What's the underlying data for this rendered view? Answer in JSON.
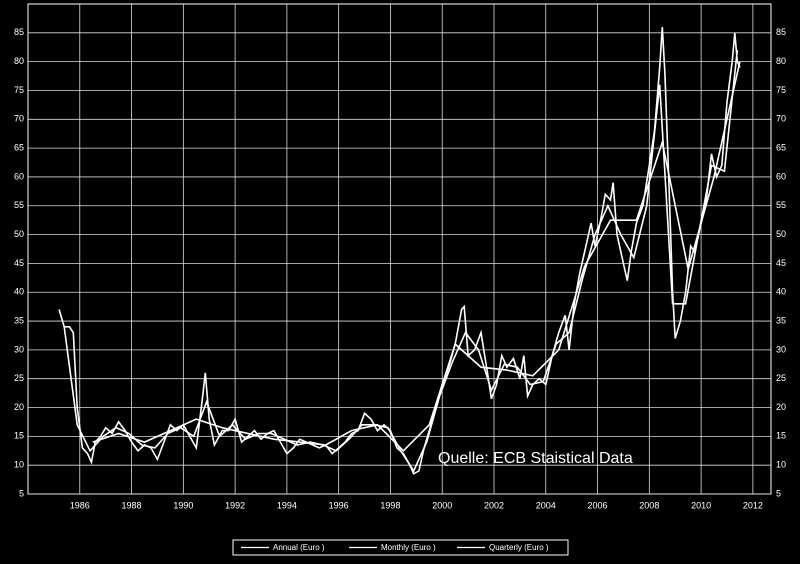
{
  "chart_data": {
    "type": "line",
    "annotation": "Quelle:  ECB Staistical Data",
    "xlim": [
      1984,
      2012.7
    ],
    "ylim": [
      5,
      90
    ],
    "xticks": [
      1986,
      1988,
      1990,
      1992,
      1994,
      1996,
      1998,
      2000,
      2002,
      2004,
      2006,
      2008,
      2010,
      2012
    ],
    "yticks": [
      5,
      10,
      15,
      20,
      25,
      30,
      35,
      40,
      45,
      50,
      55,
      60,
      65,
      70,
      75,
      80,
      85
    ],
    "grid": true,
    "legend": "bottom",
    "background": "#000000",
    "series": [
      {
        "name": "Annual (Euro )",
        "color": "#ffffff",
        "x": [
          1986.5,
          1987.5,
          1988.5,
          1989.5,
          1990.5,
          1991.5,
          1992.5,
          1993.5,
          1994.5,
          1995.5,
          1996.5,
          1997.5,
          1998.5,
          1999.5,
          2000.5,
          2001.5,
          2002.5,
          2003.5,
          2004.5,
          2005.5,
          2006.5,
          2007.5,
          2008.5,
          2009.5,
          2010.5,
          2011.5
        ],
        "values": [
          14,
          15.5,
          14,
          16,
          18,
          16.5,
          15.5,
          14.5,
          14,
          13.5,
          16,
          17,
          12.5,
          17,
          31,
          27,
          26.5,
          25.5,
          30,
          44.5,
          52.5,
          52.5,
          66,
          44,
          60,
          80
        ]
      },
      {
        "name": "Monthly (Euro )",
        "color": "#ffffff",
        "x": [
          1985.2,
          1985.4,
          1985.6,
          1985.75,
          1985.9,
          1986.1,
          1986.3,
          1986.45,
          1986.6,
          1986.8,
          1987.0,
          1987.25,
          1987.5,
          1987.75,
          1988.0,
          1988.25,
          1988.5,
          1988.75,
          1989.0,
          1989.25,
          1989.5,
          1989.75,
          1990.0,
          1990.25,
          1990.5,
          1990.75,
          1990.85,
          1991.0,
          1991.2,
          1991.5,
          1991.75,
          1992.0,
          1992.25,
          1992.5,
          1992.75,
          1993.0,
          1993.25,
          1993.5,
          1993.75,
          1994.0,
          1994.25,
          1994.5,
          1994.75,
          1995.0,
          1995.25,
          1995.5,
          1995.75,
          1996.0,
          1996.25,
          1996.5,
          1996.75,
          1997.0,
          1997.25,
          1997.5,
          1997.75,
          1998.0,
          1998.25,
          1998.5,
          1998.75,
          1998.9,
          1999.1,
          1999.3,
          1999.5,
          1999.75,
          2000.0,
          2000.25,
          2000.5,
          2000.75,
          2000.85,
          2001.0,
          2001.25,
          2001.5,
          2001.75,
          2001.9,
          2002.1,
          2002.3,
          2002.5,
          2002.75,
          2003.0,
          2003.15,
          2003.3,
          2003.5,
          2003.75,
          2004.0,
          2004.25,
          2004.5,
          2004.75,
          2004.9,
          2005.1,
          2005.3,
          2005.5,
          2005.75,
          2005.9,
          2006.1,
          2006.3,
          2006.5,
          2006.6,
          2006.75,
          2007.0,
          2007.15,
          2007.3,
          2007.5,
          2007.75,
          2008.0,
          2008.2,
          2008.4,
          2008.5,
          2008.6,
          2008.75,
          2008.9,
          2009.0,
          2009.2,
          2009.4,
          2009.6,
          2009.75,
          2010.0,
          2010.2,
          2010.4,
          2010.6,
          2010.8,
          2011.0,
          2011.2,
          2011.3,
          2011.4,
          2011.5
        ],
        "values": [
          37,
          34,
          34,
          33,
          20,
          13,
          12,
          10.5,
          14,
          15,
          16.5,
          15.5,
          17.5,
          16,
          14,
          12.5,
          13.5,
          13,
          11,
          14,
          17,
          16,
          17,
          15,
          13,
          22,
          26,
          18,
          13.5,
          16,
          16,
          18,
          14,
          15,
          16,
          14.5,
          15.5,
          16,
          14,
          12,
          13,
          14.5,
          14,
          13.5,
          13,
          13.5,
          12,
          13,
          14,
          15.5,
          16,
          19,
          18,
          16,
          17,
          16,
          13,
          12,
          10,
          8.5,
          9,
          13,
          16,
          20,
          24,
          27,
          31,
          37,
          37.5,
          29,
          30,
          33,
          26,
          21.5,
          24,
          29,
          27,
          28.5,
          25,
          29,
          22,
          24,
          25,
          24,
          29,
          33,
          36,
          30,
          38,
          43,
          47,
          52,
          48,
          52,
          57,
          56,
          59,
          50,
          45,
          42,
          47,
          52,
          55,
          62,
          68,
          79,
          86,
          78,
          60,
          40,
          32,
          35,
          40,
          48,
          47,
          52,
          56,
          64,
          60,
          62,
          73,
          80,
          85,
          80,
          79
        ]
      },
      {
        "name": "Quarterly (Euro )",
        "color": "#ffffff",
        "x": [
          1985.4,
          1985.9,
          1986.4,
          1986.9,
          1987.4,
          1987.9,
          1988.4,
          1988.9,
          1989.4,
          1989.9,
          1990.4,
          1990.9,
          1991.4,
          1991.9,
          1992.4,
          1992.9,
          1993.4,
          1993.9,
          1994.4,
          1994.9,
          1995.4,
          1995.9,
          1996.4,
          1996.9,
          1997.4,
          1997.9,
          1998.4,
          1998.9,
          1999.4,
          1999.9,
          2000.4,
          2000.9,
          2001.4,
          2001.9,
          2002.4,
          2002.9,
          2003.4,
          2003.9,
          2004.4,
          2004.9,
          2005.4,
          2005.9,
          2006.4,
          2006.9,
          2007.4,
          2007.9,
          2008.4,
          2008.9,
          2009.4,
          2009.9,
          2010.4,
          2010.9,
          2011.4
        ],
        "values": [
          34,
          17,
          12.5,
          15,
          16.5,
          15.5,
          13.5,
          13,
          15.5,
          16.5,
          15,
          21,
          15,
          17,
          14.5,
          15.5,
          15.5,
          14.5,
          13.5,
          14,
          13.5,
          12.5,
          14.5,
          17,
          17,
          16.5,
          12.5,
          9,
          14,
          22,
          28,
          33,
          30,
          23,
          27.5,
          27,
          24,
          24.5,
          31,
          33,
          42,
          50,
          55,
          50,
          46,
          55,
          76,
          38,
          38,
          50,
          62,
          61,
          82
        ]
      }
    ]
  }
}
